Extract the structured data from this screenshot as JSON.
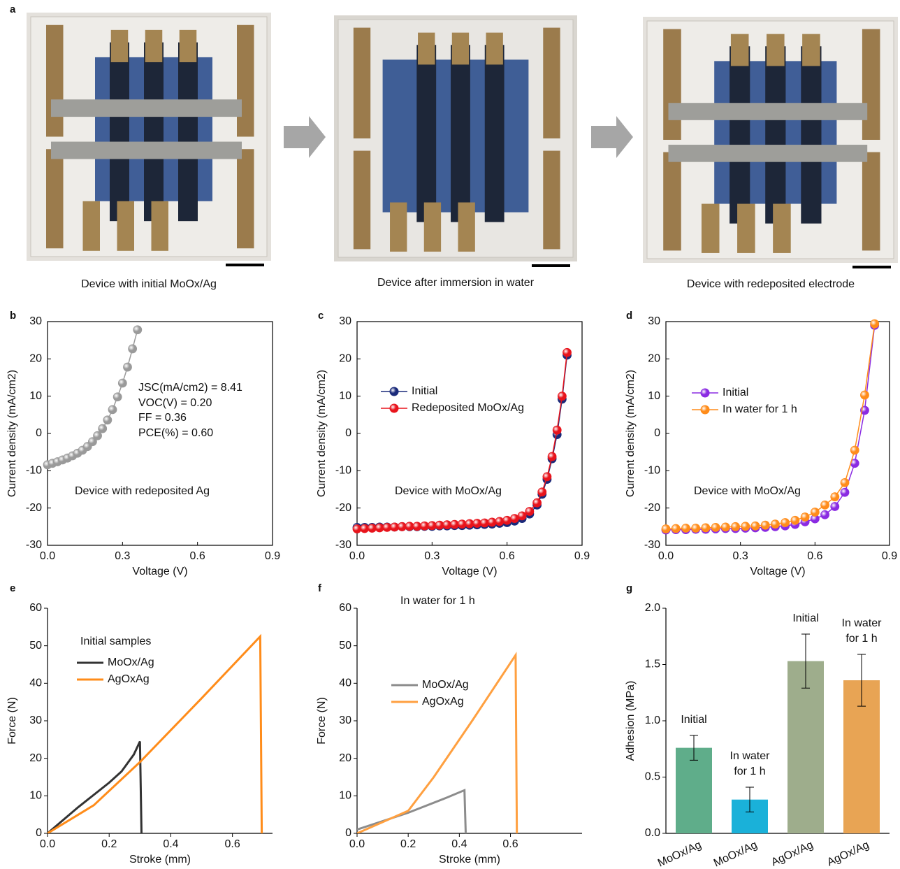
{
  "panel_labels": [
    "a",
    "b",
    "c",
    "d",
    "e",
    "f",
    "g"
  ],
  "photo_captions": [
    "Device with initial MoOx/Ag",
    "Device after immersion in water",
    "Device with redeposited electrode"
  ],
  "chart_data": [
    {
      "type": "line",
      "markers": true,
      "x_label": "Voltage (V)",
      "y_label": "Current density (mA/cm2)",
      "annotations": [
        "JSC(mA/cm2) = 8.41",
        "VOC(V) = 0.20",
        "FF = 0.36",
        "PCE(%) = 0.60",
        "Device with redeposited Ag"
      ],
      "xlim": [
        0,
        0.9
      ],
      "xticks": [
        {
          "value": 0,
          "label": "0.0"
        },
        0.3,
        0.6,
        0.9
      ],
      "ylim": [
        -30,
        30
      ],
      "yticks": [
        -30,
        -20,
        -10,
        0,
        10,
        20,
        30
      ],
      "x": [
        0,
        0.02,
        0.04,
        0.06,
        0.08,
        0.1,
        0.12,
        0.14,
        0.16,
        0.18,
        0.2,
        0.22,
        0.24,
        0.26,
        0.28,
        0.3,
        0.32,
        0.34,
        0.36
      ],
      "color": "#9a9a9a",
      "values": [
        -8.4,
        -8.0,
        -7.6,
        -7.1,
        -6.6,
        -6.0,
        -5.3,
        -4.5,
        -3.5,
        -2.2,
        -0.6,
        1.3,
        3.6,
        6.4,
        9.8,
        13.5,
        17.8,
        22.7,
        27.8
      ]
    },
    {
      "type": "line",
      "markers": true,
      "x_label": "Voltage (V)",
      "y_label": "Current density (mA/cm2)",
      "annotations": [
        "Device with MoOx/Ag"
      ],
      "xlim": [
        0,
        0.9
      ],
      "xticks": [
        {
          "value": 0,
          "label": "0.0"
        },
        0.3,
        0.6,
        0.9
      ],
      "ylim": [
        -30,
        30
      ],
      "yticks": [
        -30,
        -20,
        -10,
        0,
        10,
        20,
        30
      ],
      "x": [
        0,
        0.03,
        0.06,
        0.09,
        0.12,
        0.15,
        0.18,
        0.21,
        0.24,
        0.27,
        0.3,
        0.33,
        0.36,
        0.39,
        0.42,
        0.45,
        0.48,
        0.51,
        0.54,
        0.57,
        0.6,
        0.63,
        0.66,
        0.69,
        0.72,
        0.74,
        0.76,
        0.78,
        0.8,
        0.82,
        0.84
      ],
      "series": [
        {
          "name": "Initial",
          "color": "#1a2a7a",
          "values": [
            -25.2,
            -25.2,
            -25.2,
            -25.1,
            -25.1,
            -25.1,
            -25.0,
            -25.0,
            -25.0,
            -24.9,
            -24.9,
            -24.8,
            -24.8,
            -24.7,
            -24.7,
            -24.6,
            -24.5,
            -24.4,
            -24.3,
            -24.1,
            -23.9,
            -23.5,
            -22.8,
            -21.6,
            -19.2,
            -16.3,
            -12.3,
            -6.8,
            -0.3,
            9.2,
            21.0
          ]
        },
        {
          "name": "Redeposited MoOx/Ag",
          "color": "#e8141c",
          "values": [
            -25.6,
            -25.5,
            -25.4,
            -25.3,
            -25.2,
            -25.1,
            -25.0,
            -24.9,
            -24.9,
            -24.8,
            -24.7,
            -24.6,
            -24.5,
            -24.4,
            -24.3,
            -24.2,
            -24.1,
            -24.0,
            -23.8,
            -23.6,
            -23.3,
            -22.8,
            -22.1,
            -20.9,
            -18.6,
            -15.7,
            -11.6,
            -6.2,
            0.9,
            10.0,
            21.7
          ]
        }
      ]
    },
    {
      "type": "line",
      "markers": true,
      "x_label": "Voltage (V)",
      "y_label": "Current density (mA/cm2)",
      "annotations": [
        "Device with MoOx/Ag"
      ],
      "xlim": [
        0,
        0.9
      ],
      "xticks": [
        {
          "value": 0,
          "label": "0.0"
        },
        0.3,
        0.6,
        0.9
      ],
      "ylim": [
        -30,
        30
      ],
      "yticks": [
        -30,
        -20,
        -10,
        0,
        10,
        20,
        30
      ],
      "x": [
        0,
        0.04,
        0.08,
        0.12,
        0.16,
        0.2,
        0.24,
        0.28,
        0.32,
        0.36,
        0.4,
        0.44,
        0.48,
        0.52,
        0.56,
        0.6,
        0.64,
        0.68,
        0.72,
        0.76,
        0.8,
        0.84
      ],
      "series": [
        {
          "name": "Initial",
          "color": "#8a2be2",
          "values": [
            -25.9,
            -25.8,
            -25.8,
            -25.7,
            -25.7,
            -25.6,
            -25.5,
            -25.5,
            -25.4,
            -25.3,
            -25.2,
            -25.0,
            -24.8,
            -24.4,
            -23.7,
            -22.9,
            -21.8,
            -19.6,
            -15.8,
            -8.0,
            6.2,
            29.0
          ]
        },
        {
          "name": "In water for 1 h",
          "color": "#ff8c1a",
          "values": [
            -25.6,
            -25.5,
            -25.4,
            -25.4,
            -25.3,
            -25.2,
            -25.1,
            -25.0,
            -24.9,
            -24.8,
            -24.6,
            -24.3,
            -23.9,
            -23.3,
            -22.4,
            -21.1,
            -19.2,
            -17.0,
            -13.2,
            -4.5,
            10.3,
            29.4
          ]
        }
      ]
    },
    {
      "type": "line",
      "markers": false,
      "x_label": "Stroke (mm)",
      "y_label": "Force (N)",
      "annotations": [
        "Initial samples"
      ],
      "xlim": [
        0,
        0.73
      ],
      "xticks": [
        {
          "value": 0,
          "label": "0.0"
        },
        0.2,
        0.4,
        0.6
      ],
      "ylim": [
        0,
        60
      ],
      "yticks": [
        0,
        10,
        20,
        30,
        40,
        50,
        60
      ],
      "series": [
        {
          "name": "MoOx/Ag",
          "color": "#333333",
          "x": [
            0,
            0.1,
            0.2,
            0.24,
            0.28,
            0.3,
            0.305
          ],
          "values": [
            0,
            7,
            13.5,
            16.5,
            21,
            24.5,
            0
          ]
        },
        {
          "name": "AgOxAg",
          "color": "#ff8c1a",
          "x": [
            0,
            0.15,
            0.3,
            0.5,
            0.69,
            0.695
          ],
          "values": [
            0,
            7.5,
            19,
            36,
            52.5,
            0
          ]
        }
      ]
    },
    {
      "type": "line",
      "markers": false,
      "x_label": "Stroke (mm)",
      "y_label": "Force (N)",
      "annotations": [
        "In water for 1 h"
      ],
      "xlim": [
        0,
        0.88
      ],
      "xticks": [
        {
          "value": 0,
          "label": "0.0"
        },
        0.2,
        0.4,
        0.6
      ],
      "ylim": [
        0,
        60
      ],
      "yticks": [
        0,
        10,
        20,
        30,
        40,
        50,
        60
      ],
      "series": [
        {
          "name": "MoOx/Ag",
          "color": "#8c8c8c",
          "x": [
            0,
            0.2,
            0.35,
            0.42,
            0.425
          ],
          "values": [
            1,
            5.5,
            9.5,
            11.5,
            0
          ]
        },
        {
          "name": "AgOxAg",
          "color": "#ffa040",
          "x": [
            0,
            0.2,
            0.3,
            0.45,
            0.62,
            0.625
          ],
          "values": [
            0,
            6,
            15,
            30,
            47.5,
            0
          ]
        }
      ]
    },
    {
      "type": "bar",
      "y_label": "Adhesion (MPa)",
      "ylim": [
        0,
        2
      ],
      "yticks": [
        {
          "value": 0,
          "label": "0.0"
        },
        0.5,
        {
          "value": 1,
          "label": "1.0"
        },
        1.5,
        {
          "value": 2,
          "label": "2.0"
        }
      ],
      "categories": [
        "MoOx/Ag",
        "MoOx/Ag",
        "AgOx/Ag",
        "AgOx/Ag"
      ],
      "values": [
        0.76,
        0.3,
        1.53,
        1.36
      ],
      "errors": [
        0.11,
        0.11,
        0.24,
        0.23
      ],
      "colors": [
        "#5fad8a",
        "#1ab1d9",
        "#9ead8c",
        "#e8a454"
      ],
      "bar_labels": [
        [
          "Initial"
        ],
        [
          "In water",
          "for 1 h"
        ],
        [
          "Initial"
        ],
        [
          "In water",
          "for 1 h"
        ]
      ]
    }
  ]
}
